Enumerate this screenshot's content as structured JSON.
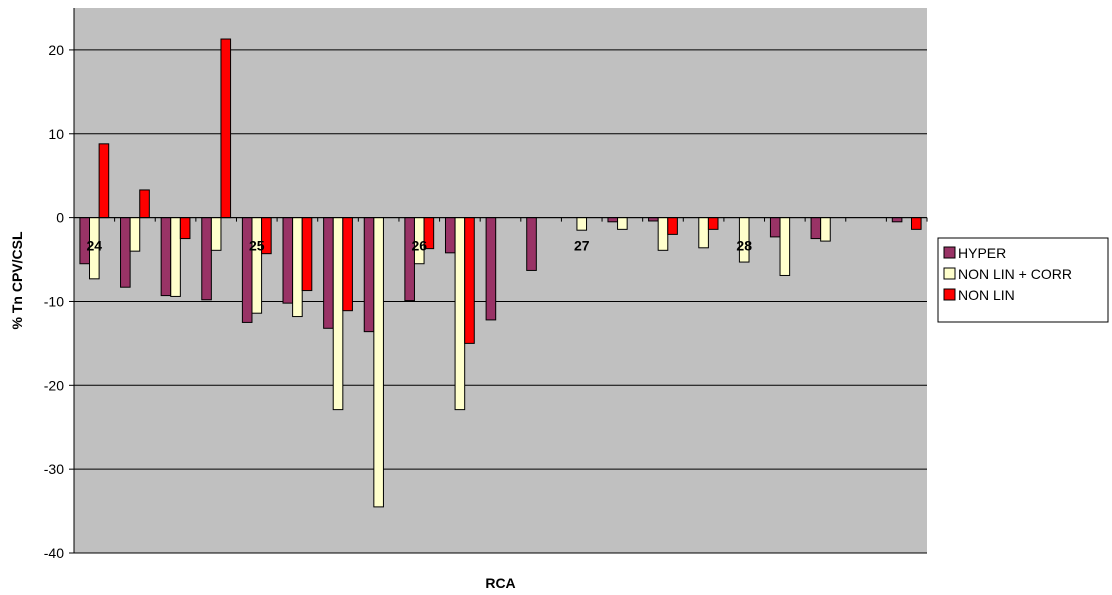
{
  "chart_data": {
    "type": "bar",
    "xlabel": "RCA",
    "ylabel": "% Tn CPV/CSL",
    "ylim": [
      -40,
      25
    ],
    "yticks": [
      -40,
      -30,
      -20,
      -10,
      0,
      10,
      20
    ],
    "grid": true,
    "legend_position": "right",
    "category_labels": [
      {
        "label": "24",
        "position": 0
      },
      {
        "label": "25",
        "position": 4
      },
      {
        "label": "26",
        "position": 8
      },
      {
        "label": "27",
        "position": 12
      },
      {
        "label": "28",
        "position": 16
      }
    ],
    "series": [
      {
        "name": "HYPER",
        "color": "#993366",
        "values": [
          -5.5,
          -8.3,
          -9.3,
          -9.8,
          -12.5,
          -10.2,
          -13.2,
          -13.6,
          -9.9,
          -4.2,
          -12.2,
          -6.3,
          null,
          -0.5,
          -0.4,
          null,
          null,
          -2.3,
          -2.5,
          null,
          -0.5
        ]
      },
      {
        "name": "NON LIN + CORR",
        "color": "#ffffcc",
        "values": [
          -7.3,
          -4.0,
          -9.4,
          -3.9,
          -11.4,
          -11.8,
          -22.9,
          -34.5,
          -5.5,
          -22.9,
          null,
          null,
          -1.5,
          -1.4,
          -3.9,
          -3.6,
          -5.3,
          -6.9,
          -2.8,
          null,
          null
        ]
      },
      {
        "name": "NON LIN",
        "color": "#ff0000",
        "values": [
          8.8,
          3.3,
          -2.5,
          21.3,
          -4.3,
          -8.7,
          -11.1,
          null,
          -3.7,
          -15.0,
          null,
          null,
          null,
          null,
          -2.0,
          -1.4,
          null,
          null,
          null,
          null,
          -1.4
        ]
      }
    ]
  }
}
